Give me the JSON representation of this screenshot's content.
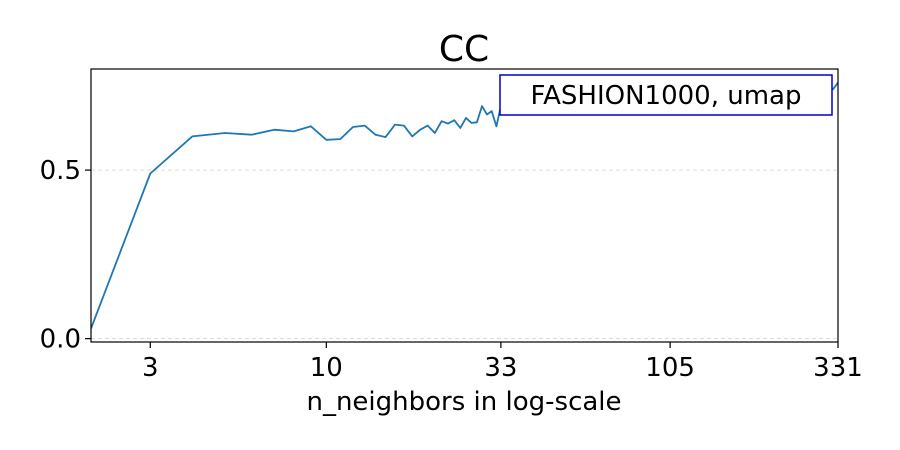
{
  "chart_data": {
    "type": "line",
    "title": "CC",
    "xlabel": "n_neighbors in log-scale",
    "ylabel": "",
    "x_scale": "log",
    "xlim": [
      2,
      331
    ],
    "ylim": [
      -0.01,
      0.8
    ],
    "x_ticks": [
      3,
      10,
      33,
      105,
      331
    ],
    "x_tick_labels": [
      "3",
      "10",
      "33",
      "105",
      "331"
    ],
    "y_ticks": [
      0.0,
      0.5
    ],
    "y_tick_labels": [
      "0.0",
      "0.5"
    ],
    "grid": "horizontal-dashed",
    "legend_text": "FASHION1000, umap",
    "legend_placement": "top-right",
    "series": [
      {
        "color": "#1f77b4",
        "x": [
          2,
          3,
          4,
          5,
          6,
          7,
          8,
          9,
          10,
          11,
          12,
          13,
          14,
          15,
          16,
          17,
          18,
          19,
          20,
          21,
          22,
          23,
          24,
          25,
          26,
          27,
          28,
          29,
          30,
          31,
          32,
          33,
          34,
          36,
          38,
          40,
          45,
          50,
          60,
          70,
          80,
          90,
          105,
          120,
          140,
          160,
          180,
          200,
          230,
          260,
          290,
          320,
          331
        ],
        "y": [
          0.03,
          0.49,
          0.6,
          0.61,
          0.605,
          0.62,
          0.615,
          0.63,
          0.59,
          0.592,
          0.628,
          0.632,
          0.605,
          0.598,
          0.635,
          0.632,
          0.6,
          0.62,
          0.632,
          0.61,
          0.645,
          0.638,
          0.648,
          0.625,
          0.655,
          0.64,
          0.642,
          0.69,
          0.665,
          0.675,
          0.63,
          0.69,
          0.7,
          0.71,
          0.72,
          0.705,
          0.725,
          0.72,
          0.73,
          0.725,
          0.74,
          0.735,
          0.745,
          0.74,
          0.75,
          0.745,
          0.755,
          0.75,
          0.76,
          0.745,
          0.755,
          0.74,
          0.76
        ]
      }
    ]
  }
}
